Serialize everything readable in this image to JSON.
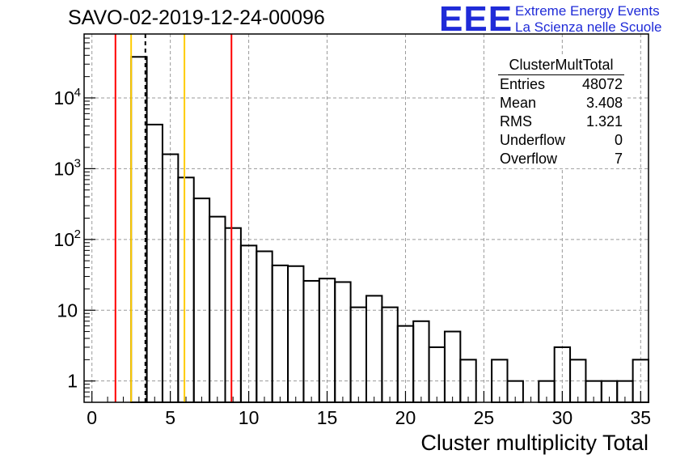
{
  "chart_data": {
    "type": "histogram",
    "title": "SAVO-02-2019-12-24-00096",
    "xlabel": "Cluster multiplicity Total",
    "ylabel": "",
    "xlim": [
      -0.5,
      35.5
    ],
    "ylim": [
      0.5,
      80000
    ],
    "yscale": "log",
    "grid": true,
    "bin_width": 1,
    "bin_centers": [
      0,
      1,
      2,
      3,
      4,
      5,
      6,
      7,
      8,
      9,
      10,
      11,
      12,
      13,
      14,
      15,
      16,
      17,
      18,
      19,
      20,
      21,
      22,
      23,
      24,
      25,
      26,
      27,
      28,
      29,
      30,
      31,
      32,
      33,
      34,
      35
    ],
    "counts": [
      0,
      0,
      0,
      38000,
      4200,
      1600,
      750,
      380,
      210,
      145,
      82,
      68,
      43,
      42,
      26,
      28,
      25,
      11,
      16,
      11,
      6,
      7,
      3,
      5,
      2,
      0,
      2,
      1,
      0,
      1,
      3,
      2,
      1,
      1,
      1,
      2
    ],
    "x_ticks": [
      "0",
      "5",
      "10",
      "15",
      "20",
      "25",
      "30",
      "35"
    ],
    "x_tick_values": [
      0,
      5,
      10,
      15,
      20,
      25,
      30,
      35
    ],
    "y_ticks": [
      "1",
      "10",
      "10",
      "10",
      "10"
    ],
    "y_tick_exponents": [
      "",
      "",
      "2",
      "3",
      "4"
    ],
    "y_tick_values": [
      1,
      10,
      100,
      1000,
      10000
    ],
    "vertical_lines": [
      {
        "name": "red-line-low",
        "x": 1.5,
        "color": "#ff0000",
        "style": "solid"
      },
      {
        "name": "yellow-line-low",
        "x": 2.5,
        "color": "#ffcc00",
        "style": "solid"
      },
      {
        "name": "mean-line",
        "x": 3.408,
        "color": "#000000",
        "style": "dashed"
      },
      {
        "name": "yellow-line-high",
        "x": 5.9,
        "color": "#ffcc00",
        "style": "solid"
      },
      {
        "name": "red-line-high",
        "x": 8.9,
        "color": "#ff0000",
        "style": "solid"
      }
    ]
  },
  "stats_box": {
    "title": "ClusterMultTotal",
    "rows": [
      {
        "label": "Entries",
        "value": "48072"
      },
      {
        "label": "Mean",
        "value": "3.408"
      },
      {
        "label": "RMS",
        "value": "1.321"
      },
      {
        "label": "Underflow",
        "value": "0"
      },
      {
        "label": "Overflow",
        "value": "7"
      }
    ]
  },
  "logo": {
    "text": "EEE",
    "line1": "Extreme Energy Events",
    "line2": "La Scienza nelle Scuole",
    "color": "#1f2bd8"
  }
}
